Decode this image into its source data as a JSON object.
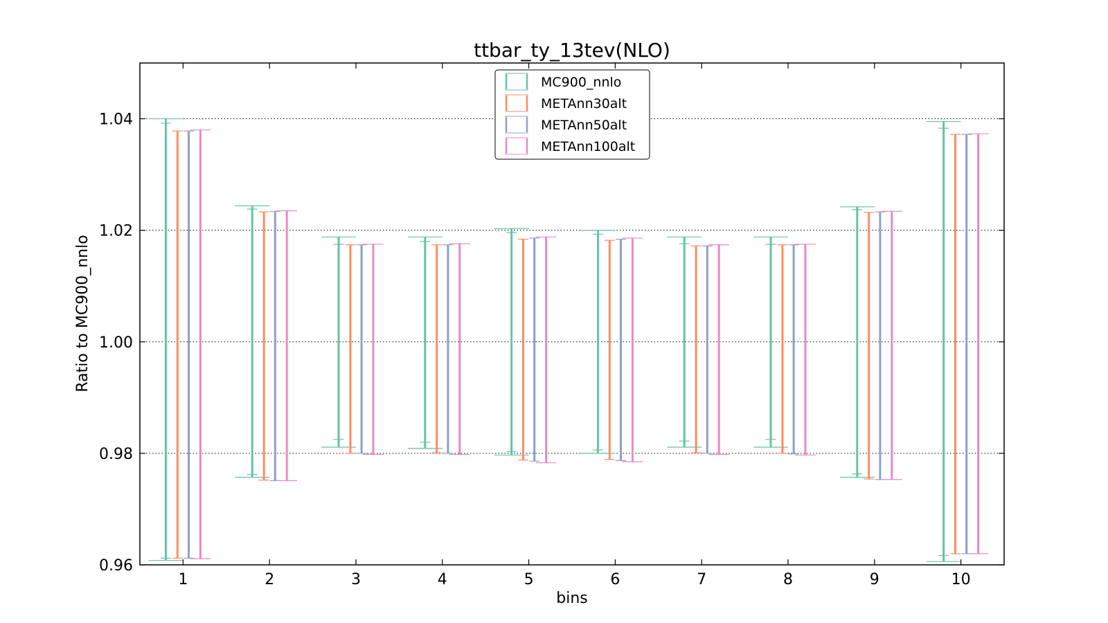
{
  "chart_data": {
    "type": "errorbar",
    "title": "ttbar_ty_13tev(NLO)",
    "xlabel": "bins",
    "ylabel": "Ratio to MC900_nnlo",
    "xlim": [
      0.5,
      10.5
    ],
    "ylim": [
      0.96,
      1.05
    ],
    "xticks": [
      1,
      2,
      3,
      4,
      5,
      6,
      7,
      8,
      9,
      10
    ],
    "yticks": [
      0.96,
      0.98,
      1.0,
      1.02,
      1.04
    ],
    "ytick_labels": [
      "0.96",
      "0.98",
      "1.00",
      "1.02",
      "1.04"
    ],
    "grid": "horizontal dotted",
    "legend_position": "top-center",
    "series": [
      {
        "name": "MC900_nnlo",
        "color": "#66c2a5",
        "offset": -0.2,
        "inner_cap": 0.06,
        "outer_cap": 0.2,
        "inner": [
          [
            0.9612,
            1.0392
          ],
          [
            0.9762,
            1.0238
          ],
          [
            0.9825,
            1.0175
          ],
          [
            0.982,
            1.018
          ],
          [
            0.9803,
            1.0196
          ],
          [
            0.9806,
            1.0193
          ],
          [
            0.9822,
            1.0176
          ],
          [
            0.9825,
            1.0175
          ],
          [
            0.9763,
            1.0237
          ],
          [
            0.9617,
            1.0383
          ]
        ],
        "outer": [
          [
            0.9608,
            1.04
          ],
          [
            0.9757,
            1.0244
          ],
          [
            0.9811,
            1.0188
          ],
          [
            0.9809,
            1.0188
          ],
          [
            0.9797,
            1.0203
          ],
          [
            0.98,
            1.02
          ],
          [
            0.9811,
            1.0188
          ],
          [
            0.9811,
            1.0188
          ],
          [
            0.9757,
            1.0242
          ],
          [
            0.9606,
            1.0395
          ]
        ]
      },
      {
        "name": "METAnn30alt",
        "color": "#fc8d62",
        "offset": -0.065,
        "inner_cap": 0.06,
        "outer_cap": 0.06,
        "inner": [
          [
            0.9612,
            1.0378
          ],
          [
            0.9752,
            1.0233
          ],
          [
            0.98,
            1.0174
          ],
          [
            0.9801,
            1.0174
          ],
          [
            0.9788,
            1.0184
          ],
          [
            0.9789,
            1.0182
          ],
          [
            0.9801,
            1.0172
          ],
          [
            0.98,
            1.0174
          ],
          [
            0.9754,
            1.0232
          ],
          [
            0.962,
            1.0372
          ]
        ],
        "outer": [
          [
            0.9612,
            1.0378
          ],
          [
            0.9752,
            1.0233
          ],
          [
            0.98,
            1.0174
          ],
          [
            0.9801,
            1.0174
          ],
          [
            0.9788,
            1.0184
          ],
          [
            0.9789,
            1.0182
          ],
          [
            0.9801,
            1.0172
          ],
          [
            0.98,
            1.0174
          ],
          [
            0.9754,
            1.0232
          ],
          [
            0.962,
            1.0372
          ]
        ]
      },
      {
        "name": "METAnn50alt",
        "color": "#8da0cb",
        "offset": 0.065,
        "inner_cap": 0.06,
        "outer_cap": 0.06,
        "inner": [
          [
            0.9612,
            1.0378
          ],
          [
            0.9751,
            1.0234
          ],
          [
            0.98,
            1.0174
          ],
          [
            0.98,
            1.0174
          ],
          [
            0.9786,
            1.0186
          ],
          [
            0.9787,
            1.0184
          ],
          [
            0.98,
            1.0172
          ],
          [
            0.9799,
            1.0174
          ],
          [
            0.9753,
            1.0233
          ],
          [
            0.962,
            1.0372
          ]
        ],
        "outer": [
          [
            0.9612,
            1.0378
          ],
          [
            0.9751,
            1.0234
          ],
          [
            0.98,
            1.0174
          ],
          [
            0.98,
            1.0174
          ],
          [
            0.9786,
            1.0186
          ],
          [
            0.9787,
            1.0184
          ],
          [
            0.98,
            1.0172
          ],
          [
            0.9799,
            1.0174
          ],
          [
            0.9753,
            1.0233
          ],
          [
            0.962,
            1.0372
          ]
        ]
      },
      {
        "name": "METAnn100alt",
        "color": "#e78ac3",
        "offset": 0.2,
        "inner_cap": 0.12,
        "outer_cap": 0.12,
        "inner": [
          [
            0.9611,
            1.038
          ],
          [
            0.9751,
            1.0235
          ],
          [
            0.9798,
            1.0175
          ],
          [
            0.9798,
            1.0176
          ],
          [
            0.9783,
            1.0188
          ],
          [
            0.9785,
            1.0186
          ],
          [
            0.9798,
            1.0174
          ],
          [
            0.9797,
            1.0175
          ],
          [
            0.9753,
            1.0234
          ],
          [
            0.962,
            1.0373
          ]
        ],
        "outer": [
          [
            0.9611,
            1.038
          ],
          [
            0.9751,
            1.0235
          ],
          [
            0.9798,
            1.0175
          ],
          [
            0.9798,
            1.0176
          ],
          [
            0.9783,
            1.0188
          ],
          [
            0.9785,
            1.0186
          ],
          [
            0.9798,
            1.0174
          ],
          [
            0.9797,
            1.0175
          ],
          [
            0.9753,
            1.0234
          ],
          [
            0.962,
            1.0373
          ]
        ]
      }
    ]
  }
}
